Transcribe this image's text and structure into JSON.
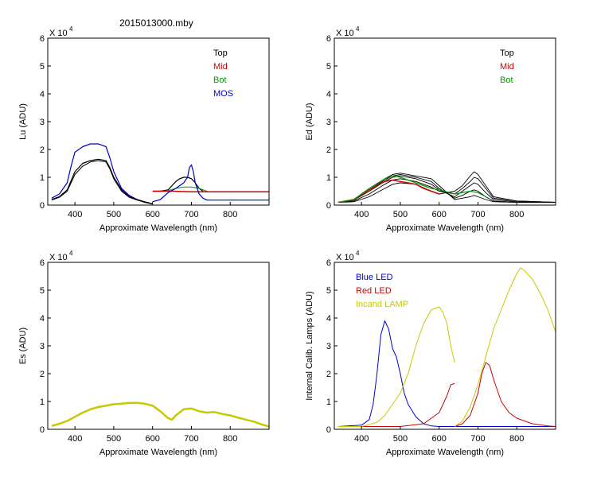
{
  "page": {
    "title": "2015013000.mby"
  },
  "chart_data": [
    {
      "type": "line",
      "id": "lu",
      "title": "",
      "xlabel": "Approximate Wavelength (nm)",
      "ylabel": "Lu (ADU)",
      "scale_label": "X 10",
      "scale_exp": "4",
      "xlim": [
        330,
        900
      ],
      "ylim": [
        0,
        6
      ],
      "xticks": [
        400,
        500,
        600,
        700,
        800
      ],
      "yticks": [
        0,
        1,
        2,
        3,
        4,
        5,
        6
      ],
      "legend": [
        "Top",
        "Mid",
        "Bot",
        "MOS"
      ],
      "legend_colors": [
        "#000000",
        "#cc0000",
        "#009900",
        "#0000cc"
      ],
      "series": [
        {
          "name": "MOS",
          "color": "#0000cc",
          "width": 1.2,
          "x": [
            340,
            360,
            380,
            390,
            400,
            420,
            440,
            460,
            480,
            490,
            500,
            520,
            540,
            560,
            580,
            600
          ],
          "y": [
            0.25,
            0.4,
            0.8,
            1.4,
            1.9,
            2.1,
            2.2,
            2.2,
            2.1,
            1.7,
            1.2,
            0.6,
            0.35,
            0.2,
            0.1,
            0.05
          ]
        },
        {
          "name": "Top",
          "color": "#000000",
          "width": 1.2,
          "x": [
            340,
            360,
            380,
            400,
            420,
            440,
            460,
            480,
            490,
            500,
            520,
            540,
            560,
            580,
            600
          ],
          "y": [
            0.2,
            0.3,
            0.55,
            1.2,
            1.5,
            1.6,
            1.65,
            1.6,
            1.35,
            1.0,
            0.55,
            0.3,
            0.2,
            0.12,
            0.05
          ]
        },
        {
          "name": "Top",
          "color": "#000000",
          "width": 1.0,
          "x": [
            340,
            360,
            380,
            400,
            420,
            440,
            460,
            480,
            490,
            500,
            520,
            540,
            560,
            580,
            600
          ],
          "y": [
            0.18,
            0.28,
            0.5,
            1.1,
            1.4,
            1.55,
            1.6,
            1.55,
            1.3,
            0.95,
            0.5,
            0.28,
            0.18,
            0.1,
            0.04
          ]
        },
        {
          "name": "Top",
          "color": "#000000",
          "width": 1.2,
          "x": [
            600,
            620,
            640,
            650,
            660,
            670,
            680,
            690,
            700,
            710,
            720,
            730
          ],
          "y": [
            0.5,
            0.5,
            0.55,
            0.7,
            0.85,
            0.95,
            1.0,
            1.0,
            0.95,
            0.8,
            0.6,
            0.5
          ]
        },
        {
          "name": "Mid",
          "color": "#cc0000",
          "width": 1.5,
          "x": [
            600,
            650,
            700,
            750,
            800,
            850,
            900
          ],
          "y": [
            0.5,
            0.5,
            0.48,
            0.48,
            0.48,
            0.48,
            0.48
          ]
        },
        {
          "name": "Bot",
          "color": "#009900",
          "width": 1.0,
          "x": [
            640,
            660,
            680,
            700,
            720,
            740
          ],
          "y": [
            0.52,
            0.6,
            0.65,
            0.65,
            0.6,
            0.5
          ]
        },
        {
          "name": "MOS",
          "color": "#0000cc",
          "width": 1.2,
          "x": [
            600,
            620,
            640,
            660,
            680,
            690,
            695,
            700,
            705,
            710,
            720,
            730,
            740,
            800,
            900
          ],
          "y": [
            0.12,
            0.2,
            0.45,
            0.6,
            0.8,
            1.0,
            1.35,
            1.45,
            1.2,
            0.8,
            0.4,
            0.25,
            0.18,
            0.18,
            0.18
          ]
        }
      ]
    },
    {
      "type": "line",
      "id": "ed",
      "title": "",
      "xlabel": "Approximate Wavelength (nm)",
      "ylabel": "Ed  (ADU)",
      "scale_label": "X 10",
      "scale_exp": "4",
      "xlim": [
        330,
        900
      ],
      "ylim": [
        0,
        6
      ],
      "xticks": [
        400,
        500,
        600,
        700,
        800
      ],
      "yticks": [
        0,
        1,
        2,
        3,
        4,
        5,
        6
      ],
      "legend": [
        "Top",
        "Mid",
        "Bot"
      ],
      "legend_colors": [
        "#000000",
        "#cc0000",
        "#009900"
      ],
      "series": [
        {
          "name": "Top",
          "color": "#000000",
          "width": 0.9,
          "x": [
            340,
            380,
            420,
            460,
            480,
            500,
            540,
            580,
            600,
            640,
            660,
            680,
            690,
            700,
            720,
            740,
            800,
            900
          ],
          "y": [
            0.1,
            0.12,
            0.3,
            0.6,
            0.75,
            0.8,
            0.75,
            0.5,
            0.4,
            0.5,
            0.7,
            1.05,
            1.2,
            1.1,
            0.7,
            0.3,
            0.15,
            0.1
          ]
        },
        {
          "name": "Top",
          "color": "#000000",
          "width": 0.9,
          "x": [
            340,
            380,
            420,
            460,
            480,
            500,
            540,
            580,
            600,
            640,
            660,
            680,
            690,
            700,
            720,
            740,
            800,
            900
          ],
          "y": [
            0.1,
            0.15,
            0.4,
            0.75,
            0.9,
            0.95,
            0.85,
            0.65,
            0.5,
            0.4,
            0.6,
            0.85,
            1.0,
            0.95,
            0.6,
            0.25,
            0.15,
            0.1
          ]
        },
        {
          "name": "Top",
          "color": "#000000",
          "width": 0.9,
          "x": [
            340,
            380,
            420,
            460,
            480,
            500,
            540,
            580,
            600,
            640,
            660,
            680,
            690,
            700,
            720,
            740,
            800,
            900
          ],
          "y": [
            0.1,
            0.18,
            0.5,
            0.85,
            1.0,
            1.05,
            0.95,
            0.75,
            0.55,
            0.3,
            0.5,
            0.7,
            0.8,
            0.75,
            0.45,
            0.2,
            0.12,
            0.1
          ]
        },
        {
          "name": "Top",
          "color": "#000000",
          "width": 0.9,
          "x": [
            340,
            380,
            420,
            460,
            480,
            500,
            540,
            580,
            600,
            640,
            660,
            680,
            690,
            700,
            720,
            740,
            800,
            900
          ],
          "y": [
            0.1,
            0.2,
            0.55,
            0.9,
            1.05,
            1.1,
            1.0,
            0.85,
            0.6,
            0.25,
            0.35,
            0.5,
            0.55,
            0.5,
            0.3,
            0.15,
            0.1,
            0.1
          ]
        },
        {
          "name": "Top",
          "color": "#000000",
          "width": 0.9,
          "x": [
            340,
            380,
            420,
            460,
            480,
            500,
            540,
            580,
            600,
            640,
            660,
            680,
            690,
            700,
            720,
            740,
            800,
            900
          ],
          "y": [
            0.1,
            0.2,
            0.6,
            0.95,
            1.1,
            1.15,
            1.05,
            0.95,
            0.7,
            0.2,
            0.25,
            0.3,
            0.35,
            0.3,
            0.2,
            0.12,
            0.1,
            0.1
          ]
        },
        {
          "name": "Mid",
          "color": "#cc0000",
          "width": 1.5,
          "x": [
            340,
            380,
            420,
            440,
            460,
            480,
            500,
            520,
            540,
            560,
            580,
            600
          ],
          "y": [
            0.1,
            0.2,
            0.55,
            0.7,
            0.85,
            0.9,
            0.85,
            0.8,
            0.75,
            0.6,
            0.5,
            0.4
          ]
        },
        {
          "name": "Bot",
          "color": "#009900",
          "width": 1.2,
          "x": [
            340,
            380,
            420,
            440,
            460,
            480,
            500,
            520,
            540,
            560,
            580,
            600,
            640,
            680,
            700,
            720
          ],
          "y": [
            0.1,
            0.2,
            0.6,
            0.75,
            0.95,
            1.05,
            1.0,
            0.9,
            0.8,
            0.7,
            0.6,
            0.55,
            0.4,
            0.5,
            0.45,
            0.3
          ]
        }
      ]
    },
    {
      "type": "line",
      "id": "es",
      "title": "",
      "xlabel": "Approximate Wavelength (nm)",
      "ylabel": "Es  (ADU)",
      "scale_label": "X 10",
      "scale_exp": "4",
      "xlim": [
        330,
        900
      ],
      "ylim": [
        0,
        6
      ],
      "xticks": [
        400,
        500,
        600,
        700,
        800
      ],
      "yticks": [
        0,
        1,
        2,
        3,
        4,
        5,
        6
      ],
      "legend": [],
      "legend_colors": [],
      "series": [
        {
          "name": "Es",
          "color": "#c8c800",
          "width": 2.5,
          "x": [
            340,
            360,
            380,
            400,
            420,
            440,
            460,
            480,
            500,
            520,
            540,
            560,
            580,
            600,
            620,
            640,
            650,
            660,
            680,
            700,
            720,
            740,
            760,
            780,
            800,
            820,
            840,
            860,
            880,
            900
          ],
          "y": [
            0.12,
            0.2,
            0.3,
            0.45,
            0.6,
            0.72,
            0.8,
            0.85,
            0.9,
            0.92,
            0.95,
            0.95,
            0.92,
            0.85,
            0.65,
            0.4,
            0.35,
            0.5,
            0.72,
            0.75,
            0.65,
            0.6,
            0.62,
            0.55,
            0.5,
            0.42,
            0.35,
            0.28,
            0.18,
            0.1
          ]
        }
      ]
    },
    {
      "type": "line",
      "id": "cal",
      "title": "",
      "xlabel": "Approximate Wavelength (nm)",
      "ylabel": "Internal Calib. Lamps (ADU)",
      "scale_label": "X 10",
      "scale_exp": "4",
      "xlim": [
        330,
        900
      ],
      "ylim": [
        0,
        6
      ],
      "xticks": [
        400,
        500,
        600,
        700,
        800
      ],
      "yticks": [
        0,
        1,
        2,
        3,
        4,
        5,
        6
      ],
      "legend": [
        "Blue LED",
        "Red LED",
        "Incand LAMP"
      ],
      "legend_colors": [
        "#0000cc",
        "#cc0000",
        "#c8c800"
      ],
      "series": [
        {
          "name": "Blue LED",
          "color": "#0000cc",
          "width": 1.0,
          "x": [
            340,
            400,
            420,
            430,
            440,
            450,
            460,
            470,
            480,
            490,
            500,
            510,
            520,
            540,
            560,
            580,
            600,
            650,
            700,
            750,
            800,
            900
          ],
          "y": [
            0.1,
            0.15,
            0.35,
            0.9,
            2.0,
            3.4,
            3.9,
            3.6,
            2.9,
            2.6,
            2.0,
            1.3,
            0.9,
            0.45,
            0.2,
            0.12,
            0.1,
            0.1,
            0.1,
            0.1,
            0.1,
            0.1
          ]
        },
        {
          "name": "Red LED",
          "color": "#cc0000",
          "width": 1.0,
          "x": [
            340,
            500,
            560,
            580,
            600,
            620,
            630,
            640
          ],
          "y": [
            0.1,
            0.1,
            0.2,
            0.4,
            0.6,
            1.2,
            1.6,
            1.65
          ]
        },
        {
          "name": "Red LED",
          "color": "#cc0000",
          "width": 1.0,
          "x": [
            640,
            660,
            680,
            700,
            710,
            720,
            730,
            740,
            760,
            780,
            800,
            840,
            880,
            900
          ],
          "y": [
            0.1,
            0.2,
            0.5,
            1.3,
            2.0,
            2.4,
            2.3,
            1.8,
            1.0,
            0.6,
            0.4,
            0.2,
            0.12,
            0.1
          ]
        },
        {
          "name": "Incand LAMP",
          "color": "#c8c800",
          "width": 1.0,
          "x": [
            340,
            400,
            440,
            460,
            480,
            500,
            520,
            540,
            560,
            580,
            600,
            610,
            620,
            630,
            640
          ],
          "y": [
            0.1,
            0.1,
            0.25,
            0.5,
            0.9,
            1.3,
            2.0,
            3.0,
            3.8,
            4.3,
            4.4,
            4.2,
            3.8,
            3.0,
            2.4
          ]
        },
        {
          "name": "Incand LAMP",
          "color": "#c8c800",
          "width": 1.0,
          "x": [
            640,
            660,
            680,
            700,
            720,
            740,
            760,
            780,
            800,
            810,
            820,
            840,
            860,
            880,
            900
          ],
          "y": [
            0.1,
            0.3,
            0.8,
            1.6,
            2.6,
            3.6,
            4.3,
            5.0,
            5.6,
            5.8,
            5.7,
            5.4,
            4.9,
            4.3,
            3.5
          ]
        }
      ]
    }
  ]
}
